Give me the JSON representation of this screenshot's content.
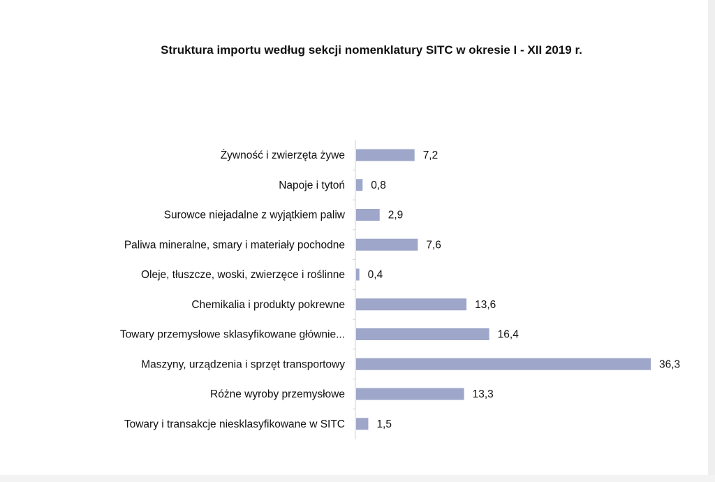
{
  "chart_data": {
    "type": "bar",
    "orientation": "horizontal",
    "title": "Struktura importu według sekcji nomenklatury SITC w okresie I - XII 2019 r.",
    "categories": [
      "Żywność i zwierzęta żywe",
      "Napoje i tytoń",
      "Surowce niejadalne z wyjątkiem paliw",
      "Paliwa mineralne, smary i materiały  pochodne",
      "Oleje, tłuszcze, woski, zwierzęce i roślinne",
      "Chemikalia i produkty pokrewne",
      "Towary przemysłowe sklasyfikowane głównie...",
      "Maszyny, urządzenia i sprzęt transportowy",
      "Różne wyroby przemysłowe",
      "Towary i transakcje niesklasyfikowane w SITC"
    ],
    "values": [
      7.2,
      0.8,
      2.9,
      7.6,
      0.4,
      13.6,
      16.4,
      36.3,
      13.3,
      1.5
    ],
    "value_labels": [
      "7,2",
      "0,8",
      "2,9",
      "7,6",
      "0,4",
      "13,6",
      "16,4",
      "36,3",
      "13,3",
      "1,5"
    ],
    "xlim": [
      0,
      36.3
    ],
    "grid": false,
    "legend": "none",
    "bar_color": "#9ea7c9"
  }
}
